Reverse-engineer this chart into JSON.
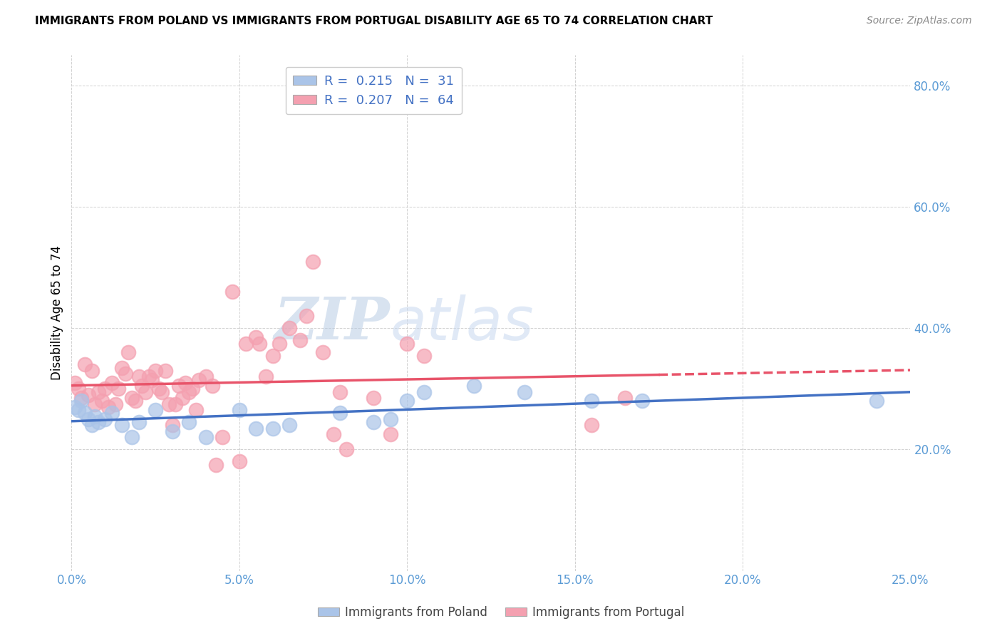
{
  "title": "IMMIGRANTS FROM POLAND VS IMMIGRANTS FROM PORTUGAL DISABILITY AGE 65 TO 74 CORRELATION CHART",
  "source": "Source: ZipAtlas.com",
  "ylabel": "Disability Age 65 to 74",
  "xlim": [
    0.0,
    0.25
  ],
  "ylim": [
    0.0,
    0.85
  ],
  "xtick_labels": [
    "0.0%",
    "5.0%",
    "10.0%",
    "15.0%",
    "20.0%",
    "25.0%"
  ],
  "xtick_values": [
    0.0,
    0.05,
    0.1,
    0.15,
    0.2,
    0.25
  ],
  "ytick_labels": [
    "20.0%",
    "40.0%",
    "60.0%",
    "80.0%"
  ],
  "ytick_values": [
    0.2,
    0.4,
    0.6,
    0.8
  ],
  "poland_color": "#aac4e8",
  "portugal_color": "#f4a0b0",
  "poland_R": 0.215,
  "poland_N": 31,
  "portugal_R": 0.207,
  "portugal_N": 64,
  "poland_points": [
    [
      0.001,
      0.27
    ],
    [
      0.002,
      0.265
    ],
    [
      0.003,
      0.28
    ],
    [
      0.004,
      0.26
    ],
    [
      0.005,
      0.25
    ],
    [
      0.006,
      0.24
    ],
    [
      0.007,
      0.255
    ],
    [
      0.008,
      0.245
    ],
    [
      0.01,
      0.25
    ],
    [
      0.012,
      0.26
    ],
    [
      0.015,
      0.24
    ],
    [
      0.018,
      0.22
    ],
    [
      0.02,
      0.245
    ],
    [
      0.025,
      0.265
    ],
    [
      0.03,
      0.23
    ],
    [
      0.035,
      0.245
    ],
    [
      0.04,
      0.22
    ],
    [
      0.05,
      0.265
    ],
    [
      0.055,
      0.235
    ],
    [
      0.06,
      0.235
    ],
    [
      0.065,
      0.24
    ],
    [
      0.08,
      0.26
    ],
    [
      0.09,
      0.245
    ],
    [
      0.095,
      0.25
    ],
    [
      0.1,
      0.28
    ],
    [
      0.105,
      0.295
    ],
    [
      0.12,
      0.305
    ],
    [
      0.135,
      0.295
    ],
    [
      0.155,
      0.28
    ],
    [
      0.17,
      0.28
    ],
    [
      0.24,
      0.28
    ]
  ],
  "portugal_points": [
    [
      0.001,
      0.31
    ],
    [
      0.002,
      0.3
    ],
    [
      0.003,
      0.285
    ],
    [
      0.004,
      0.34
    ],
    [
      0.005,
      0.29
    ],
    [
      0.006,
      0.33
    ],
    [
      0.007,
      0.275
    ],
    [
      0.008,
      0.295
    ],
    [
      0.009,
      0.28
    ],
    [
      0.01,
      0.3
    ],
    [
      0.011,
      0.27
    ],
    [
      0.012,
      0.31
    ],
    [
      0.013,
      0.275
    ],
    [
      0.014,
      0.3
    ],
    [
      0.015,
      0.335
    ],
    [
      0.016,
      0.325
    ],
    [
      0.017,
      0.36
    ],
    [
      0.018,
      0.285
    ],
    [
      0.019,
      0.28
    ],
    [
      0.02,
      0.32
    ],
    [
      0.021,
      0.305
    ],
    [
      0.022,
      0.295
    ],
    [
      0.023,
      0.32
    ],
    [
      0.024,
      0.315
    ],
    [
      0.025,
      0.33
    ],
    [
      0.026,
      0.3
    ],
    [
      0.027,
      0.295
    ],
    [
      0.028,
      0.33
    ],
    [
      0.029,
      0.275
    ],
    [
      0.03,
      0.24
    ],
    [
      0.031,
      0.275
    ],
    [
      0.032,
      0.305
    ],
    [
      0.033,
      0.285
    ],
    [
      0.034,
      0.31
    ],
    [
      0.035,
      0.295
    ],
    [
      0.036,
      0.3
    ],
    [
      0.037,
      0.265
    ],
    [
      0.038,
      0.315
    ],
    [
      0.04,
      0.32
    ],
    [
      0.042,
      0.305
    ],
    [
      0.043,
      0.175
    ],
    [
      0.045,
      0.22
    ],
    [
      0.048,
      0.46
    ],
    [
      0.05,
      0.18
    ],
    [
      0.052,
      0.375
    ],
    [
      0.055,
      0.385
    ],
    [
      0.056,
      0.375
    ],
    [
      0.058,
      0.32
    ],
    [
      0.06,
      0.355
    ],
    [
      0.062,
      0.375
    ],
    [
      0.065,
      0.4
    ],
    [
      0.068,
      0.38
    ],
    [
      0.07,
      0.42
    ],
    [
      0.072,
      0.51
    ],
    [
      0.075,
      0.36
    ],
    [
      0.078,
      0.225
    ],
    [
      0.08,
      0.295
    ],
    [
      0.082,
      0.2
    ],
    [
      0.09,
      0.285
    ],
    [
      0.095,
      0.225
    ],
    [
      0.1,
      0.375
    ],
    [
      0.105,
      0.355
    ],
    [
      0.155,
      0.24
    ],
    [
      0.165,
      0.285
    ]
  ],
  "poland_line_color": "#4472c4",
  "portugal_line_color": "#e8546a",
  "portugal_line_solid_end": 0.175,
  "watermark_color": "#c8d8ef",
  "legend_text_color": "#4472c4"
}
